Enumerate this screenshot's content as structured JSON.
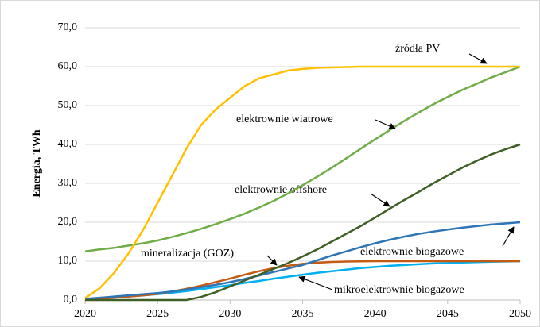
{
  "chart_data": {
    "type": "line",
    "ylabel": "Energia, TWh",
    "x": [
      2020,
      2021,
      2022,
      2023,
      2024,
      2025,
      2026,
      2027,
      2028,
      2029,
      2030,
      2031,
      2032,
      2033,
      2034,
      2035,
      2036,
      2037,
      2038,
      2039,
      2040,
      2041,
      2042,
      2043,
      2044,
      2045,
      2046,
      2047,
      2048,
      2049,
      2050
    ],
    "xlim": [
      2020,
      2050
    ],
    "xticks": [
      2020,
      2025,
      2030,
      2035,
      2040,
      2045,
      2050
    ],
    "ylim": [
      0,
      70
    ],
    "yticks": [
      {
        "value": 0,
        "label": "0,0"
      },
      {
        "value": 10,
        "label": "10,0"
      },
      {
        "value": 20,
        "label": "20,0"
      },
      {
        "value": 30,
        "label": "30,0"
      },
      {
        "value": 40,
        "label": "40,0"
      },
      {
        "value": 50,
        "label": "50,0"
      },
      {
        "value": 60,
        "label": "60,0"
      },
      {
        "value": 70,
        "label": "70,0"
      }
    ],
    "grid": true,
    "series": [
      {
        "name": "źródła PV",
        "color": "#ffc000",
        "values": [
          0.5,
          3,
          7,
          12,
          18,
          25,
          32,
          39,
          45,
          49,
          52,
          55,
          57,
          58,
          59,
          59.4,
          59.7,
          59.8,
          59.9,
          60,
          60,
          60,
          60,
          60,
          60,
          60,
          60,
          60,
          60,
          60,
          60
        ]
      },
      {
        "name": "elektrownie wiatrowe",
        "color": "#70ad47",
        "values": [
          12.5,
          13,
          13.4,
          14,
          14.6,
          15.3,
          16.2,
          17.2,
          18.3,
          19.5,
          20.8,
          22.2,
          23.8,
          25.5,
          27.4,
          29.5,
          31.7,
          34,
          36.4,
          38.9,
          41.3,
          43.7,
          46,
          48.2,
          50.3,
          52.2,
          54,
          55.6,
          57.2,
          58.6,
          60
        ]
      },
      {
        "name": "elektrownie offshore",
        "color": "#3f5f27",
        "values": [
          0,
          0,
          0,
          0,
          0,
          0,
          0,
          0,
          0.8,
          2,
          3.5,
          5,
          6.5,
          8,
          9.5,
          11.2,
          13,
          15,
          17,
          19,
          21.2,
          23.5,
          25.7,
          27.8,
          30,
          32,
          34,
          35.8,
          37.4,
          38.8,
          40
        ]
      },
      {
        "name": "elektrownie biogazowe",
        "color": "#2e75b6",
        "values": [
          0.3,
          0.6,
          0.9,
          1.2,
          1.5,
          1.8,
          2.2,
          2.7,
          3.3,
          3.9,
          4.6,
          5.4,
          6.3,
          7.2,
          8.1,
          9,
          10.2,
          11.4,
          12.5,
          13.6,
          14.6,
          15.5,
          16.3,
          17,
          17.6,
          18.1,
          18.6,
          19,
          19.4,
          19.7,
          20
        ]
      },
      {
        "name": "mineralizacja (GOZ)",
        "color": "#c55a11",
        "values": [
          0,
          0.3,
          0.6,
          0.9,
          1.2,
          1.6,
          2.2,
          2.9,
          3.7,
          4.6,
          5.5,
          6.5,
          7.4,
          8.2,
          8.8,
          9.3,
          9.6,
          9.8,
          9.9,
          9.95,
          10,
          10,
          10,
          10,
          10,
          10,
          10,
          10,
          10,
          10,
          10
        ]
      },
      {
        "name": "mikroelektrownie biogazowe",
        "color": "#00b0f0",
        "values": [
          0.2,
          0.4,
          0.7,
          0.9,
          1.2,
          1.5,
          1.9,
          2.3,
          2.8,
          3.3,
          3.8,
          4.4,
          4.9,
          5.5,
          6,
          6.5,
          7,
          7.4,
          7.8,
          8.2,
          8.5,
          8.8,
          9,
          9.2,
          9.4,
          9.5,
          9.65,
          9.75,
          9.85,
          9.92,
          10
        ]
      }
    ]
  }
}
